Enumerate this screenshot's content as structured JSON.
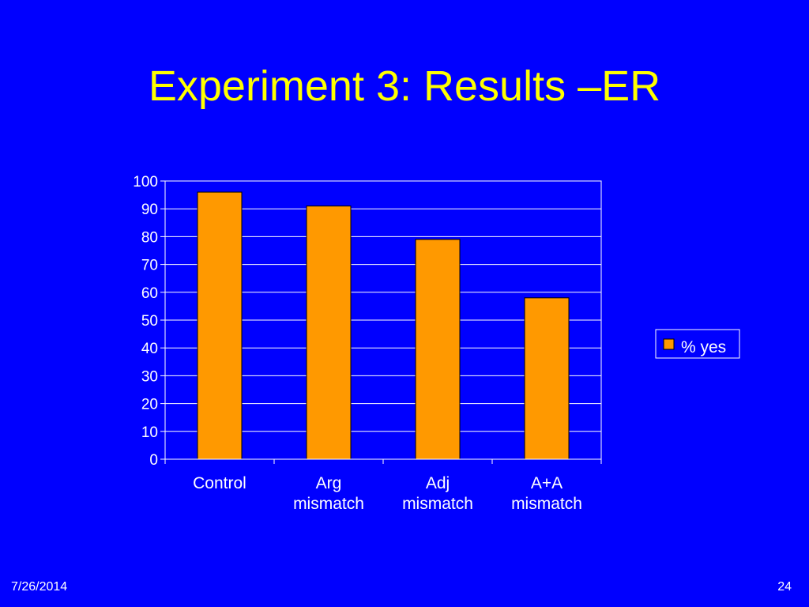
{
  "slide": {
    "title": "Experiment 3: Results –ER",
    "date": "7/26/2014",
    "page_number": "24",
    "background_color": "#0000ff",
    "title_color": "#ffff00"
  },
  "chart_data": {
    "type": "bar",
    "categories": [
      [
        "Control"
      ],
      [
        "Arg",
        "mismatch"
      ],
      [
        "Adj",
        "mismatch"
      ],
      [
        "A+A",
        "mismatch"
      ]
    ],
    "series": [
      {
        "name": "% yes",
        "values": [
          96,
          91,
          79,
          58
        ],
        "color": "#ff9900"
      }
    ],
    "title": "",
    "xlabel": "",
    "ylabel": "",
    "ylim": [
      0,
      100
    ],
    "yticks": [
      0,
      10,
      20,
      30,
      40,
      50,
      60,
      70,
      80,
      90,
      100
    ],
    "grid": true,
    "legend": "right",
    "gridline_color": "#ffffff",
    "axis_color": "#ffffff"
  }
}
